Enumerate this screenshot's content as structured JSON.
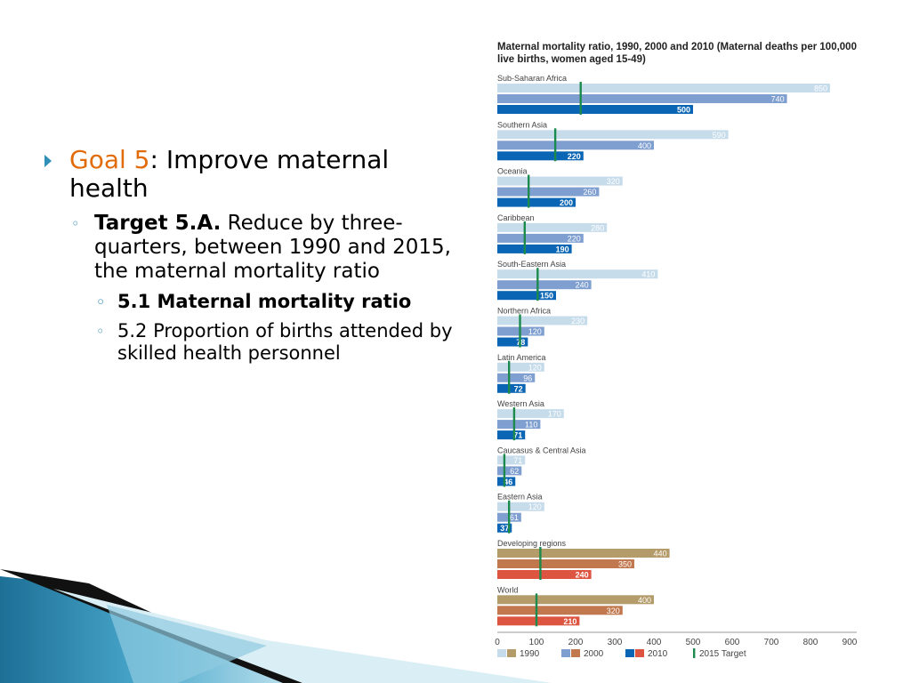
{
  "slide": {
    "goal_label": "Goal 5",
    "goal_rest": ":  Improve maternal health",
    "target_label": "Target 5.A.",
    "target_text": " Reduce by three-quarters, between 1990 and 2015, the maternal mortality ratio",
    "indicators": [
      {
        "text": "5.1 Maternal mortality ratio",
        "bold": true
      },
      {
        "text": "5.2 Proportion of births attended by skilled health personnel",
        "bold": false
      }
    ]
  },
  "colors": {
    "accent_orange": "#e36c0a",
    "bullet_blue": "#2f8fb7",
    "c1990": "#c7dceb",
    "c2000": "#7f9fd0",
    "c2010": "#0a66b5",
    "d1990": "#b49b6a",
    "d2000": "#c1784e",
    "d2010": "#dd5540",
    "target": "#1b8a4c"
  },
  "chart_data": {
    "type": "bar",
    "orientation": "horizontal",
    "title": "Maternal mortality ratio, 1990, 2000 and 2010 (Maternal deaths per 100,000 live births, women aged 15-49)",
    "xlim": [
      0,
      900
    ],
    "xticks": [
      0,
      100,
      200,
      300,
      400,
      500,
      600,
      700,
      800,
      900
    ],
    "grid": false,
    "legend_position": "bottom",
    "legend": [
      "1990",
      "2000",
      "2010",
      "2015 Target"
    ],
    "categories": [
      {
        "name": "Sub-Saharan Africa",
        "values": [
          850,
          740,
          500
        ],
        "target": 213,
        "aggregate": false
      },
      {
        "name": "Southern Asia",
        "values": [
          590,
          400,
          220
        ],
        "target": 148,
        "aggregate": false
      },
      {
        "name": "Oceania",
        "values": [
          320,
          260,
          200
        ],
        "target": 80,
        "aggregate": false
      },
      {
        "name": "Caribbean",
        "values": [
          280,
          220,
          190
        ],
        "target": 70,
        "aggregate": false
      },
      {
        "name": "South-Eastern Asia",
        "values": [
          410,
          240,
          150
        ],
        "target": 103,
        "aggregate": false
      },
      {
        "name": "Northern Africa",
        "values": [
          230,
          120,
          78
        ],
        "target": 58,
        "aggregate": false
      },
      {
        "name": "Latin America",
        "values": [
          120,
          96,
          72
        ],
        "target": 30,
        "aggregate": false
      },
      {
        "name": "Western Asia",
        "values": [
          170,
          110,
          71
        ],
        "target": 43,
        "aggregate": false
      },
      {
        "name": "Caucasus & Central Asia",
        "values": [
          71,
          62,
          46
        ],
        "target": 18,
        "aggregate": false
      },
      {
        "name": "Eastern Asia",
        "values": [
          120,
          61,
          37
        ],
        "target": 30,
        "aggregate": false
      },
      {
        "name": "Developing regions",
        "values": [
          440,
          350,
          240
        ],
        "target": 110,
        "aggregate": true
      },
      {
        "name": "World",
        "values": [
          400,
          320,
          210
        ],
        "target": 100,
        "aggregate": true
      }
    ]
  }
}
